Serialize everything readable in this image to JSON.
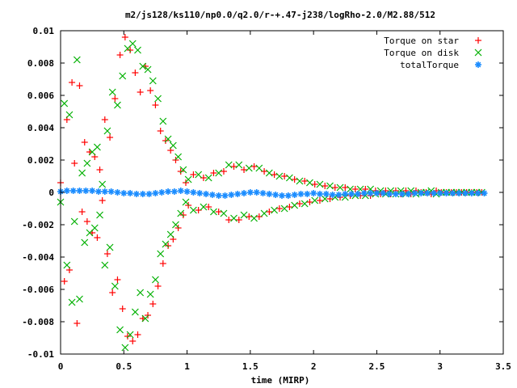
{
  "chart_data": {
    "type": "scatter",
    "title": "m2/js128/ks110/np0.0/q2.0/r-+.47-j238/logRho-2.0/M2.88/512",
    "xlabel": "time (MIRP)",
    "ylabel": "",
    "xlim": [
      0,
      3.5
    ],
    "ylim": [
      -0.01,
      0.01
    ],
    "xticks": [
      "0",
      "0.5",
      "1",
      "1.5",
      "2",
      "2.5",
      "3",
      "3.5"
    ],
    "yticks": [
      "0.01",
      "0.008",
      "0.006",
      "0.004",
      "0.002",
      "0",
      "-0.002",
      "-0.004",
      "-0.006",
      "-0.008",
      "-0.01"
    ],
    "legend_position": "top-right",
    "series": [
      {
        "name": "Torque on star",
        "marker": "+",
        "color": "#ff0000",
        "x": [
          0.0,
          0.03,
          0.05,
          0.07,
          0.09,
          0.11,
          0.13,
          0.15,
          0.17,
          0.19,
          0.21,
          0.23,
          0.25,
          0.27,
          0.29,
          0.31,
          0.33,
          0.35,
          0.37,
          0.39,
          0.41,
          0.43,
          0.45,
          0.47,
          0.49,
          0.51,
          0.53,
          0.55,
          0.57,
          0.59,
          0.61,
          0.63,
          0.65,
          0.67,
          0.69,
          0.71,
          0.73,
          0.75,
          0.77,
          0.79,
          0.81,
          0.83,
          0.85,
          0.87,
          0.89,
          0.91,
          0.93,
          0.95,
          0.97,
          0.99,
          1.01,
          1.05,
          1.09,
          1.13,
          1.17,
          1.21,
          1.25,
          1.29,
          1.33,
          1.37,
          1.41,
          1.45,
          1.49,
          1.53,
          1.57,
          1.61,
          1.65,
          1.69,
          1.73,
          1.77,
          1.81,
          1.85,
          1.89,
          1.93,
          1.97,
          2.01,
          2.05,
          2.09,
          2.13,
          2.17,
          2.21,
          2.25,
          2.29,
          2.33,
          2.37,
          2.41,
          2.45,
          2.49,
          2.53,
          2.57,
          2.61,
          2.65,
          2.69,
          2.73,
          2.77,
          2.81,
          2.85,
          2.89,
          2.93,
          2.97,
          3.01,
          3.05,
          3.09,
          3.13,
          3.17,
          3.21,
          3.25,
          3.29,
          3.33
        ],
        "y": [
          0.0006,
          -0.0055,
          0.0045,
          -0.0048,
          0.0068,
          0.0018,
          -0.0081,
          0.0066,
          -0.0012,
          0.0031,
          -0.0018,
          0.0025,
          -0.0025,
          0.0022,
          -0.0028,
          0.0014,
          -0.0005,
          0.0045,
          -0.0038,
          0.0034,
          -0.0062,
          0.0058,
          -0.0054,
          0.0085,
          -0.0072,
          0.0096,
          -0.0089,
          0.0088,
          -0.0092,
          0.0074,
          -0.0088,
          0.0062,
          -0.0078,
          0.0078,
          -0.0076,
          0.0063,
          -0.0069,
          0.0054,
          -0.0058,
          0.0038,
          -0.0044,
          0.0032,
          -0.0033,
          0.0026,
          -0.0029,
          0.002,
          -0.0022,
          0.0013,
          -0.0014,
          0.0006,
          -0.0008,
          0.0011,
          -0.0011,
          0.0009,
          -0.0009,
          0.0012,
          -0.0012,
          0.0013,
          -0.0017,
          0.0016,
          -0.0017,
          0.0014,
          -0.0015,
          0.0016,
          -0.0015,
          0.0013,
          -0.0012,
          0.0011,
          -0.001,
          0.001,
          -0.0009,
          0.0008,
          -0.0007,
          0.0007,
          -0.0006,
          0.0005,
          -0.0005,
          0.0004,
          -0.0004,
          0.0003,
          -0.0003,
          0.0003,
          -0.0002,
          0.0002,
          -0.0002,
          0.0002,
          -0.0002,
          0.0001,
          -0.0001,
          0.0001,
          -0.0001,
          0.0001,
          -0.0001,
          0.0001,
          -0.0001,
          0.0001,
          0.0,
          0.0,
          -0.0001,
          0.0001,
          0.0,
          0.0,
          0.0,
          0.0,
          0.0,
          0.0,
          0.0,
          0.0,
          0.0
        ]
      },
      {
        "name": "Torque on disk",
        "marker": "x",
        "color": "#00b000",
        "x": [
          0.0,
          0.03,
          0.05,
          0.07,
          0.09,
          0.11,
          0.13,
          0.15,
          0.17,
          0.19,
          0.21,
          0.23,
          0.25,
          0.27,
          0.29,
          0.31,
          0.33,
          0.35,
          0.37,
          0.39,
          0.41,
          0.43,
          0.45,
          0.47,
          0.49,
          0.51,
          0.53,
          0.55,
          0.57,
          0.59,
          0.61,
          0.63,
          0.65,
          0.67,
          0.69,
          0.71,
          0.73,
          0.75,
          0.77,
          0.79,
          0.81,
          0.83,
          0.85,
          0.87,
          0.89,
          0.91,
          0.93,
          0.95,
          0.97,
          0.99,
          1.01,
          1.05,
          1.09,
          1.13,
          1.17,
          1.21,
          1.25,
          1.29,
          1.33,
          1.37,
          1.41,
          1.45,
          1.49,
          1.53,
          1.57,
          1.61,
          1.65,
          1.69,
          1.73,
          1.77,
          1.81,
          1.85,
          1.89,
          1.93,
          1.97,
          2.01,
          2.05,
          2.09,
          2.13,
          2.17,
          2.21,
          2.25,
          2.29,
          2.33,
          2.37,
          2.41,
          2.45,
          2.49,
          2.53,
          2.57,
          2.61,
          2.65,
          2.69,
          2.73,
          2.77,
          2.81,
          2.85,
          2.89,
          2.93,
          2.97,
          3.01,
          3.05,
          3.09,
          3.13,
          3.17,
          3.21,
          3.25,
          3.29,
          3.33
        ],
        "y": [
          -0.0006,
          0.0055,
          -0.0045,
          0.0048,
          -0.0068,
          -0.0018,
          0.0082,
          -0.0066,
          0.0012,
          -0.0031,
          0.0018,
          -0.0025,
          0.0025,
          -0.0022,
          0.0028,
          -0.0014,
          0.0005,
          -0.0045,
          0.0038,
          -0.0034,
          0.0062,
          -0.0058,
          0.0054,
          -0.0085,
          0.0072,
          -0.0096,
          0.0089,
          -0.0088,
          0.0092,
          -0.0074,
          0.0088,
          -0.0062,
          0.0078,
          -0.0078,
          0.0076,
          -0.0063,
          0.0069,
          -0.0054,
          0.0058,
          -0.0038,
          0.0044,
          -0.0032,
          0.0033,
          -0.0026,
          0.0029,
          -0.002,
          0.0022,
          -0.0013,
          0.0014,
          -0.0006,
          0.0008,
          -0.0011,
          0.0011,
          -0.0009,
          0.0009,
          -0.0012,
          0.0012,
          -0.0013,
          0.0017,
          -0.0016,
          0.0017,
          -0.0014,
          0.0015,
          -0.0016,
          0.0015,
          -0.0013,
          0.0012,
          -0.0011,
          0.001,
          -0.001,
          0.0009,
          -0.0008,
          0.0007,
          -0.0007,
          0.0006,
          -0.0005,
          0.0005,
          -0.0004,
          0.0004,
          -0.0003,
          0.0003,
          -0.0003,
          0.0002,
          -0.0002,
          0.0002,
          -0.0002,
          0.0002,
          -0.0001,
          0.0001,
          -0.0001,
          0.0001,
          -0.0001,
          0.0001,
          -0.0001,
          0.0001,
          -0.0001,
          0.0,
          0.0,
          0.0001,
          -0.0001,
          0.0,
          0.0,
          0.0,
          0.0,
          0.0,
          0.0,
          0.0,
          0.0,
          0.0
        ]
      },
      {
        "name": "totalTorque",
        "marker": "*",
        "color": "#1a8cff",
        "x": [
          0.0,
          0.05,
          0.1,
          0.15,
          0.2,
          0.25,
          0.3,
          0.35,
          0.4,
          0.45,
          0.5,
          0.55,
          0.6,
          0.65,
          0.7,
          0.75,
          0.8,
          0.85,
          0.9,
          0.95,
          1.0,
          1.05,
          1.1,
          1.15,
          1.2,
          1.25,
          1.3,
          1.35,
          1.4,
          1.45,
          1.5,
          1.55,
          1.6,
          1.65,
          1.7,
          1.75,
          1.8,
          1.85,
          1.9,
          1.95,
          2.0,
          2.05,
          2.1,
          2.15,
          2.2,
          2.25,
          2.3,
          2.35,
          2.4,
          2.45,
          2.5,
          2.55,
          2.6,
          2.65,
          2.7,
          2.75,
          2.8,
          2.85,
          2.9,
          2.95,
          3.0,
          3.05,
          3.1,
          3.15,
          3.2,
          3.25,
          3.3,
          3.35
        ],
        "y": [
          5e-05,
          0.0001,
          0.0001,
          0.0001,
          0.0001,
          0.0001,
          5e-05,
          5e-05,
          5e-05,
          0.0,
          -5e-05,
          -5e-05,
          -0.0001,
          -0.0001,
          -0.0001,
          -5e-05,
          0.0,
          5e-05,
          5e-05,
          0.0001,
          5e-05,
          0.0,
          -5e-05,
          -0.0001,
          -0.00015,
          -0.0002,
          -0.0002,
          -0.00015,
          -0.0001,
          -5e-05,
          0.0,
          0.0,
          -5e-05,
          -0.0001,
          -0.00015,
          -0.0002,
          -0.0002,
          -0.00015,
          -0.0001,
          -0.0001,
          -5e-05,
          -0.0001,
          -0.0001,
          -0.00015,
          -0.00015,
          -0.0001,
          -0.0001,
          -0.0001,
          -5e-05,
          -5e-05,
          -5e-05,
          -5e-05,
          -0.0001,
          -0.0001,
          -0.0001,
          -0.0001,
          -5e-05,
          -5e-05,
          -5e-05,
          -5e-05,
          -5e-05,
          -5e-05,
          -5e-05,
          -5e-05,
          -5e-05,
          -5e-05,
          -5e-05,
          -5e-05
        ]
      }
    ]
  }
}
